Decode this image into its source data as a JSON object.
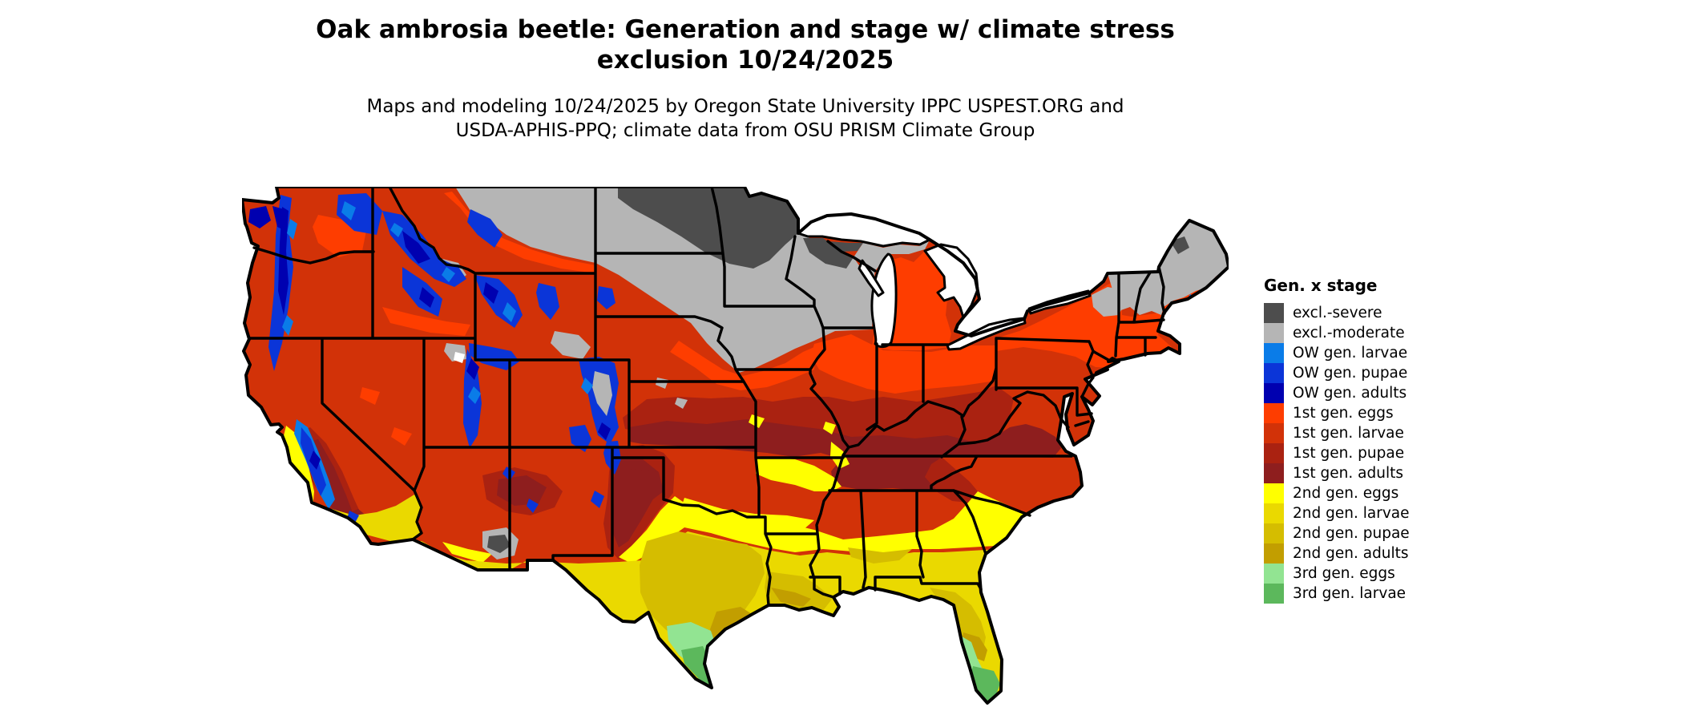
{
  "title": {
    "line1": "Oak ambrosia beetle: Generation and stage w/ climate stress",
    "line2": "exclusion 10/24/2025"
  },
  "subtitle": {
    "line1": "Maps and modeling 10/24/2025 by Oregon State University IPPC USPEST.ORG and",
    "line2": "USDA-APHIS-PPQ; climate data from OSU PRISM Climate Group"
  },
  "legend": {
    "title": "Gen. x stage",
    "items": [
      {
        "label": "excl.-severe",
        "color_key": "excl_severe"
      },
      {
        "label": "excl.-moderate",
        "color_key": "excl_moderate"
      },
      {
        "label": "OW gen. larvae",
        "color_key": "ow_larvae"
      },
      {
        "label": "OW gen. pupae",
        "color_key": "ow_pupae"
      },
      {
        "label": "OW gen. adults",
        "color_key": "ow_adults"
      },
      {
        "label": "1st gen. eggs",
        "color_key": "g1_eggs"
      },
      {
        "label": "1st gen. larvae",
        "color_key": "g1_larvae"
      },
      {
        "label": "1st gen. pupae",
        "color_key": "g1_pupae"
      },
      {
        "label": "1st gen. adults",
        "color_key": "g1_adults"
      },
      {
        "label": "2nd gen. eggs",
        "color_key": "g2_eggs"
      },
      {
        "label": "2nd gen. larvae",
        "color_key": "g2_larvae"
      },
      {
        "label": "2nd gen. pupae",
        "color_key": "g2_pupae"
      },
      {
        "label": "2nd gen. adults",
        "color_key": "g2_adults"
      },
      {
        "label": "3rd gen. eggs",
        "color_key": "g3_eggs"
      },
      {
        "label": "3rd gen. larvae",
        "color_key": "g3_larvae"
      }
    ]
  },
  "palette": {
    "excl_severe": "#4d4d4d",
    "excl_moderate": "#b5b5b5",
    "ow_larvae": "#0a7ce8",
    "ow_pupae": "#0b35d8",
    "ow_adults": "#0000b0",
    "g1_eggs": "#fe3d00",
    "g1_larvae": "#d23208",
    "g1_pupae": "#aa2211",
    "g1_adults": "#8e1e1e",
    "g2_eggs": "#ffff00",
    "g2_larvae": "#ead900",
    "g2_pupae": "#d5bd00",
    "g2_adults": "#c29e00",
    "g3_eggs": "#92e492",
    "g3_larvae": "#5cb85c",
    "map_border": "#000000",
    "background": "#ffffff"
  },
  "map": {
    "region": "Conterminous United States",
    "date_shown": "10/24/2025"
  }
}
